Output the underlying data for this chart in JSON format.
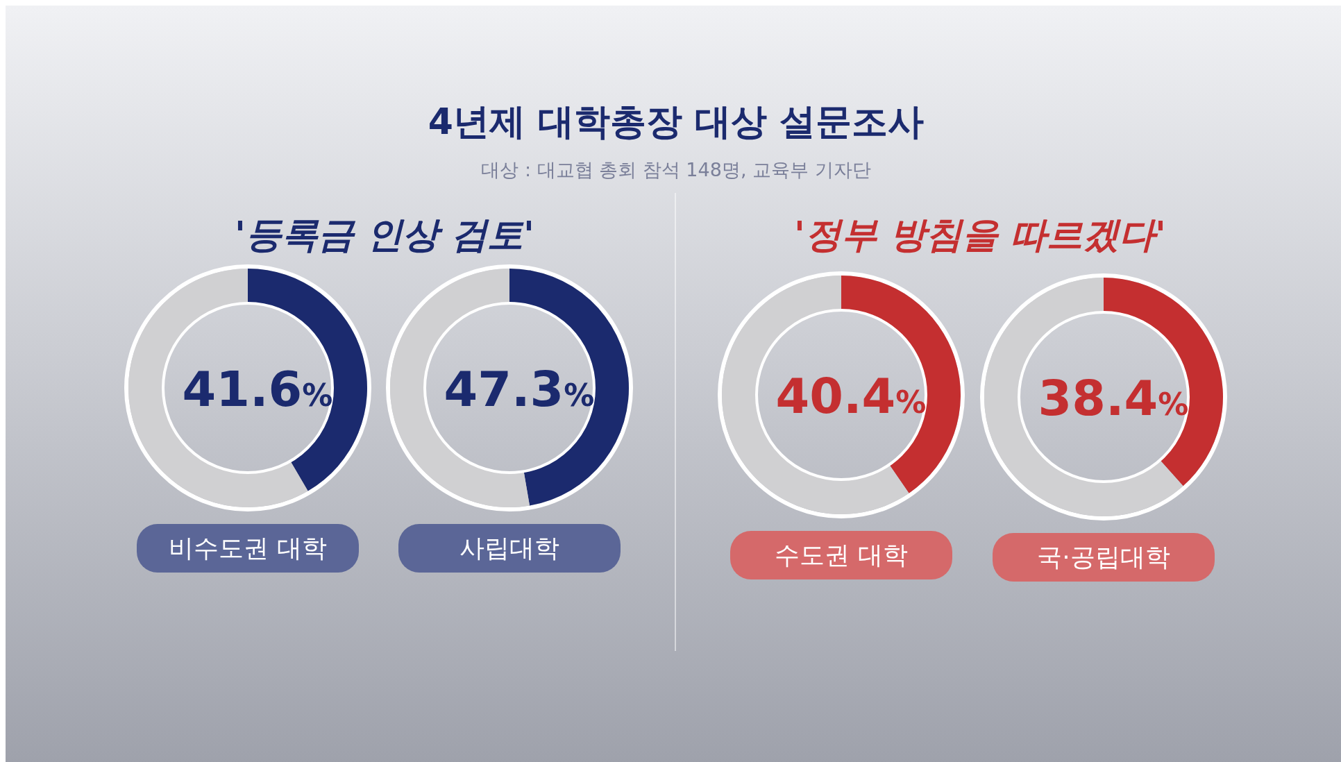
{
  "chart_data": [
    {
      "type": "other",
      "title": "4년제 대학총장 대상 설문조사",
      "subtitle": "대상 : 대교협 총회 참석 148명, 교육부 기자단",
      "annotations": [
        "'등록금 인상 검토'",
        "'정부 방침을 따르겠다'"
      ]
    },
    {
      "type": "donut",
      "title": "비수도권 대학",
      "categories": [
        null,
        null
      ],
      "values": [
        41.6,
        58.4
      ],
      "colors": [
        "#1b2a6e",
        "#d0d0d2"
      ],
      "value_labels": [
        "41.6%",
        null
      ]
    },
    {
      "type": "donut",
      "title": "사립대학",
      "categories": [
        null,
        null
      ],
      "values": [
        47.3,
        52.7
      ],
      "colors": [
        "#1b2a6e",
        "#d0d0d2"
      ],
      "value_labels": [
        "47.3%",
        null
      ]
    },
    {
      "type": "donut",
      "title": "수도권 대학",
      "categories": [
        null,
        null
      ],
      "values": [
        40.4,
        59.6
      ],
      "colors": [
        "#c42f30",
        "#d0d0d2"
      ],
      "value_labels": [
        "40.4%",
        null
      ]
    },
    {
      "type": "donut",
      "title": "국·공립대학",
      "categories": [
        null,
        null
      ],
      "values": [
        38.4,
        61.6
      ],
      "colors": [
        "#c42f30",
        "#d0d0d2"
      ],
      "value_labels": [
        "38.4%",
        null
      ]
    }
  ]
}
